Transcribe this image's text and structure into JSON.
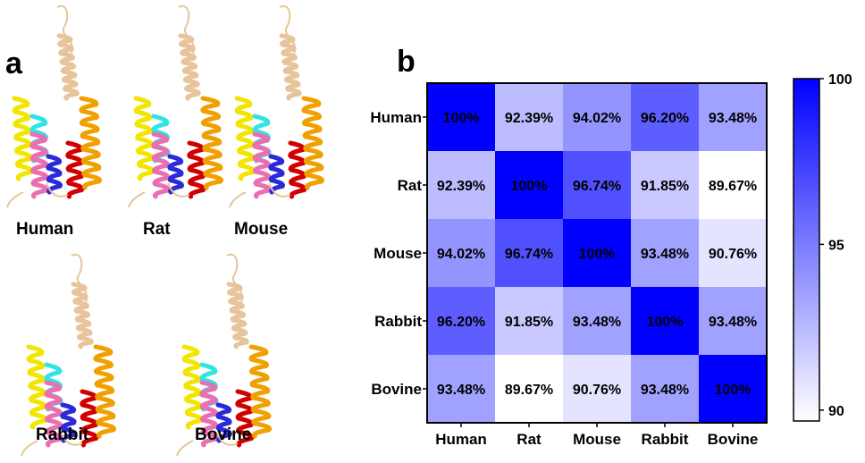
{
  "panel_a": {
    "letter": "a",
    "structures": [
      {
        "name": "Human"
      },
      {
        "name": "Rat"
      },
      {
        "name": "Mouse"
      },
      {
        "name": "Rabbit"
      },
      {
        "name": "Bovine"
      }
    ]
  },
  "panel_b": {
    "letter": "b"
  },
  "colors": {
    "tail": "#e7c49b",
    "yellow": "#f2e500",
    "cyan": "#2ee4e4",
    "pink": "#ea6fb0",
    "blue": "#2a2ad8",
    "red": "#d10000",
    "orange": "#f0a000",
    "heat_max": "#0000ff",
    "heat_min": "#ffffff"
  },
  "chart_data": {
    "type": "heatmap",
    "rows": [
      "Human",
      "Rat",
      "Mouse",
      "Rabbit",
      "Bovine"
    ],
    "columns": [
      "Human",
      "Rat",
      "Mouse",
      "Rabbit",
      "Bovine"
    ],
    "values": [
      [
        100,
        92.39,
        94.02,
        96.2,
        93.48
      ],
      [
        92.39,
        100,
        96.74,
        91.85,
        89.67
      ],
      [
        94.02,
        96.74,
        100,
        93.48,
        90.76
      ],
      [
        96.2,
        91.85,
        93.48,
        100,
        93.48
      ],
      [
        93.48,
        89.67,
        90.76,
        93.48,
        100
      ]
    ],
    "labels": [
      [
        "100%",
        "92.39%",
        "94.02%",
        "96.20%",
        "93.48%"
      ],
      [
        "92.39%",
        "100%",
        "96.74%",
        "91.85%",
        "89.67%"
      ],
      [
        "94.02%",
        "96.74%",
        "100%",
        "93.48%",
        "90.76%"
      ],
      [
        "96.20%",
        "91.85%",
        "93.48%",
        "100%",
        "93.48%"
      ],
      [
        "93.48%",
        "89.67%",
        "90.76%",
        "93.48%",
        "100%"
      ]
    ],
    "colorbar": {
      "min": 89.67,
      "max": 100,
      "ticks": [
        90,
        95,
        100
      ]
    }
  }
}
